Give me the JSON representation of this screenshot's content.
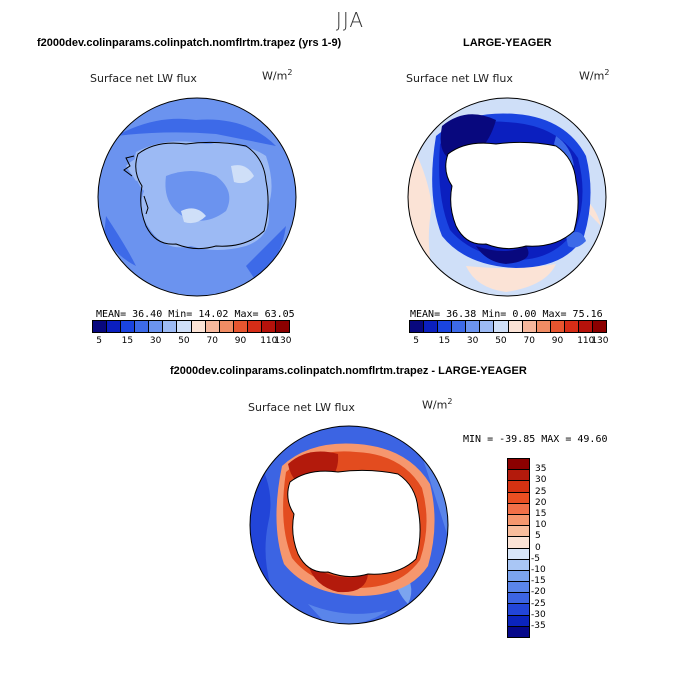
{
  "season": "JJA",
  "panels": [
    {
      "title": "f2000dev.colinparams.colinpatch.nomflrtm.trapez (yrs 1-9)",
      "variable": "Surface net LW flux",
      "units": "W/m",
      "units_exp": "2",
      "stats": "MEAN=  36.40  Min=  14.02  Max=  63.05"
    },
    {
      "title": "LARGE-YEAGER",
      "variable": "Surface net LW flux",
      "units": "W/m",
      "units_exp": "2",
      "stats": "MEAN=  36.38  Min=   0.00  Max=  75.16"
    },
    {
      "title": "f2000dev.colinparams.colinpatch.nomflrtm.trapez - LARGE-YEAGER",
      "variable": "Surface net LW flux",
      "units": "W/m",
      "units_exp": "2",
      "stats": "MIN = -39.85 MAX =  49.60"
    }
  ],
  "abs_colorbar": {
    "colors": [
      "#08087e",
      "#0b1fbf",
      "#1a44e0",
      "#3d6ae8",
      "#6b93ef",
      "#9cbaf4",
      "#cfdff8",
      "#fbe3d6",
      "#f6b79c",
      "#f08c64",
      "#e7552f",
      "#d62d17",
      "#b5120b",
      "#8b0000"
    ],
    "labels": [
      "5",
      "15",
      "30",
      "50",
      "70",
      "90",
      "110",
      "130"
    ]
  },
  "diff_colorbar": {
    "colors": [
      "#8b0000",
      "#b31a0c",
      "#d63212",
      "#ea4f22",
      "#f27048",
      "#f6976e",
      "#f9bd9c",
      "#fbe3d6",
      "#d8e6f9",
      "#a9c6f5",
      "#7ba4ef",
      "#5a85ea",
      "#3c64e3",
      "#2245d8",
      "#0b24bd",
      "#06088a"
    ],
    "labels": [
      "35",
      "30",
      "25",
      "20",
      "15",
      "10",
      "5",
      "0",
      "-5",
      "-10",
      "-15",
      "-20",
      "-25",
      "-30",
      "-35"
    ]
  }
}
